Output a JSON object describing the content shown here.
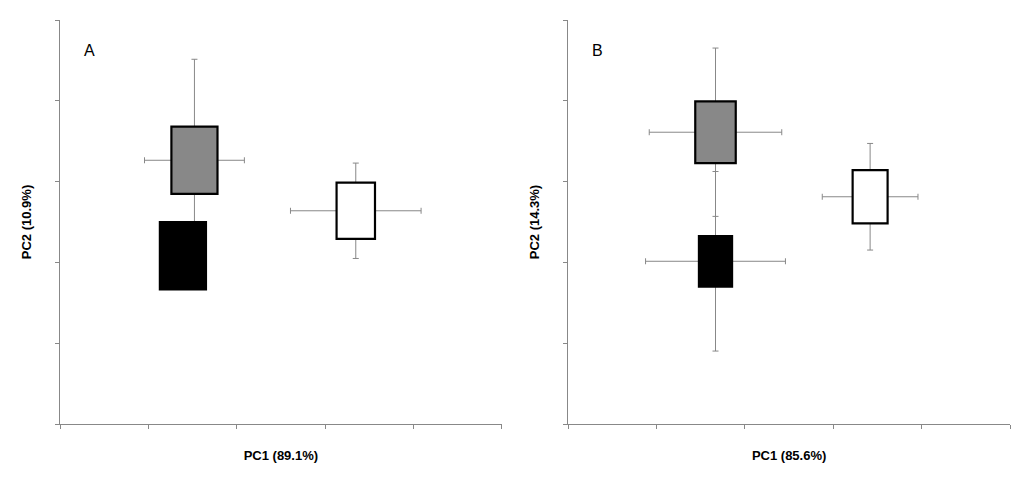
{
  "chart_data": [
    {
      "type": "scatter",
      "annotations": [
        "A"
      ],
      "xlabel": "PC1 (89.1%)",
      "ylabel": "PC2 (10.9%)",
      "x": [
        -1.5,
        -1.8,
        2.7
      ],
      "values": [
        1.5,
        -0.2,
        0.6
      ],
      "xerr": [
        1.3,
        0.45,
        1.7
      ],
      "yerr": [
        1.8,
        0.55,
        0.85
      ],
      "sizes": [
        1.2,
        1.2,
        1.0
      ],
      "colors": [
        "#888888",
        "#000000",
        "#ffffff"
      ],
      "marker": "square",
      "xlim": [
        -5.0,
        6.5
      ],
      "ylim": [
        -3.2,
        4.0
      ],
      "xticks": [
        -5.0,
        -2.7,
        -0.4,
        1.9,
        4.2,
        6.5
      ],
      "yticks": [
        -3.2,
        -1.76,
        -0.32,
        1.12,
        2.56,
        4.0
      ],
      "tick_labels": false,
      "grid": false
    },
    {
      "type": "scatter",
      "annotations": [
        "B"
      ],
      "xlabel": "PC1 (85.6%)",
      "ylabel": "PC2 (14.3%)",
      "x": [
        -1.0,
        -1.0,
        3.2
      ],
      "values": [
        2.0,
        -0.3,
        0.85
      ],
      "xerr": [
        1.8,
        1.9,
        1.3
      ],
      "yerr": [
        1.5,
        1.6,
        0.95
      ],
      "sizes": [
        1.1,
        0.9,
        0.95
      ],
      "colors": [
        "#888888",
        "#000000",
        "#ffffff"
      ],
      "marker": "square",
      "xlim": [
        -5.0,
        7.0
      ],
      "ylim": [
        -3.2,
        4.0
      ],
      "xticks": [
        -5.0,
        -2.6,
        -0.2,
        2.2,
        4.6,
        7.0
      ],
      "yticks": [
        -3.2,
        -1.76,
        -0.32,
        1.12,
        2.56,
        4.0
      ],
      "tick_labels": false,
      "grid": false
    }
  ]
}
